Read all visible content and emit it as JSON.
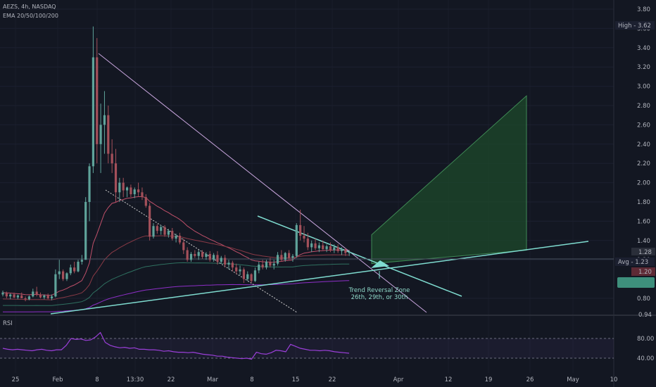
{
  "header": {
    "symbol_line": "AEZS, 4h, NASDAQ",
    "indicator_line": "EMA 20/50/100/200"
  },
  "rsi": {
    "label": "RSI",
    "ticks": [
      "80.00",
      "40.00"
    ],
    "values": [
      60,
      58,
      57,
      58,
      57,
      56,
      55,
      57,
      58,
      56,
      55,
      57,
      57,
      66,
      80,
      78,
      79,
      76,
      77,
      83,
      92,
      72,
      66,
      63,
      61,
      62,
      60,
      61,
      58,
      58,
      57,
      57,
      56,
      54,
      55,
      53,
      52,
      52,
      51,
      52,
      50,
      48,
      47,
      46,
      44,
      44,
      42,
      41,
      40,
      39,
      40,
      38,
      52,
      49,
      48,
      51,
      56,
      55,
      53,
      68,
      64,
      60,
      58,
      56,
      56,
      55,
      56,
      55,
      53,
      52,
      51,
      50
    ]
  },
  "price_labels": {
    "high": "High - 3.62",
    "current": "1.28",
    "avg": "Avg - 1.23",
    "red": "1.20",
    "bottom_partial": "0.94"
  },
  "annotation": {
    "line1": "Trend Reversal Zone",
    "line2": "26th, 29th, or 30th"
  },
  "colors": {
    "background": "#131722",
    "up": "#5fa39a",
    "down": "#a4505a",
    "trendline_teal": "#7fdcd0",
    "trendline_lilac": "#c9a6de",
    "target_box": "#1d4a2b",
    "rsi_line": "#9b3fd9",
    "ema20": "#c0506a",
    "ema50": "#8a3a46",
    "ema100": "#2f7060",
    "ema200": "#8e2fc8"
  },
  "chart_data": {
    "type": "candlestick",
    "title": "AEZS, 4h, NASDAQ",
    "ylim": [
      0.7,
      3.85
    ],
    "y_ticks": [
      3.8,
      3.6,
      3.4,
      3.2,
      3.0,
      2.8,
      2.6,
      2.4,
      2.2,
      2.0,
      1.8,
      1.6,
      1.4,
      1.2,
      0.8
    ],
    "x_ticks": [
      "25",
      "Feb",
      "8",
      "13:30",
      "22",
      "Mar",
      "8",
      "15",
      "22",
      "Apr",
      "12",
      "19",
      "26",
      "May",
      "10"
    ],
    "candles": [
      [
        0.84,
        0.88,
        0.82,
        0.86
      ],
      [
        0.86,
        0.87,
        0.8,
        0.82
      ],
      [
        0.82,
        0.85,
        0.79,
        0.84
      ],
      [
        0.84,
        0.86,
        0.8,
        0.81
      ],
      [
        0.81,
        0.84,
        0.79,
        0.83
      ],
      [
        0.83,
        0.86,
        0.8,
        0.8
      ],
      [
        0.8,
        0.82,
        0.77,
        0.79
      ],
      [
        0.79,
        0.83,
        0.78,
        0.82
      ],
      [
        0.82,
        0.9,
        0.81,
        0.87
      ],
      [
        0.87,
        0.92,
        0.82,
        0.84
      ],
      [
        0.84,
        0.86,
        0.8,
        0.81
      ],
      [
        0.81,
        0.84,
        0.79,
        0.83
      ],
      [
        0.83,
        0.85,
        0.79,
        0.8
      ],
      [
        0.8,
        0.84,
        0.78,
        0.82
      ],
      [
        0.82,
        1.1,
        0.81,
        1.05
      ],
      [
        1.05,
        1.2,
        1.0,
        1.08
      ],
      [
        1.08,
        1.1,
        0.98,
        1.0
      ],
      [
        1.0,
        1.07,
        0.98,
        1.06
      ],
      [
        1.06,
        1.15,
        1.04,
        1.12
      ],
      [
        1.12,
        1.18,
        1.06,
        1.08
      ],
      [
        1.08,
        1.2,
        1.07,
        1.18
      ],
      [
        1.18,
        1.25,
        1.15,
        1.2
      ],
      [
        1.2,
        1.85,
        1.2,
        1.8
      ],
      [
        1.8,
        2.2,
        1.6,
        2.17
      ],
      [
        2.17,
        3.62,
        2.1,
        3.3
      ],
      [
        3.3,
        3.5,
        2.2,
        2.4
      ],
      [
        2.4,
        2.82,
        2.1,
        2.6
      ],
      [
        2.6,
        2.95,
        2.3,
        2.7
      ],
      [
        2.7,
        2.8,
        2.2,
        2.3
      ],
      [
        2.3,
        2.45,
        2.1,
        2.2
      ],
      [
        2.2,
        2.35,
        1.8,
        1.9
      ],
      [
        1.9,
        2.05,
        1.8,
        2.0
      ],
      [
        2.0,
        2.05,
        1.85,
        1.92
      ],
      [
        1.92,
        1.96,
        1.85,
        1.95
      ],
      [
        1.95,
        1.98,
        1.85,
        1.88
      ],
      [
        1.88,
        1.95,
        1.84,
        1.93
      ],
      [
        1.93,
        2.0,
        1.86,
        1.9
      ],
      [
        1.9,
        1.95,
        1.82,
        1.85
      ],
      [
        1.85,
        1.88,
        1.74,
        1.76
      ],
      [
        1.76,
        1.79,
        1.4,
        1.44
      ],
      [
        1.44,
        1.58,
        1.42,
        1.55
      ],
      [
        1.55,
        1.57,
        1.47,
        1.5
      ],
      [
        1.5,
        1.56,
        1.46,
        1.54
      ],
      [
        1.54,
        1.56,
        1.44,
        1.46
      ],
      [
        1.46,
        1.52,
        1.43,
        1.5
      ],
      [
        1.5,
        1.53,
        1.4,
        1.42
      ],
      [
        1.42,
        1.47,
        1.38,
        1.45
      ],
      [
        1.45,
        1.48,
        1.36,
        1.38
      ],
      [
        1.38,
        1.42,
        1.26,
        1.3
      ],
      [
        1.3,
        1.33,
        1.18,
        1.2
      ],
      [
        1.2,
        1.28,
        1.18,
        1.26
      ],
      [
        1.26,
        1.3,
        1.22,
        1.24
      ],
      [
        1.24,
        1.3,
        1.2,
        1.28
      ],
      [
        1.28,
        1.3,
        1.21,
        1.23
      ],
      [
        1.23,
        1.28,
        1.2,
        1.26
      ],
      [
        1.26,
        1.29,
        1.18,
        1.2
      ],
      [
        1.2,
        1.27,
        1.18,
        1.25
      ],
      [
        1.25,
        1.29,
        1.15,
        1.18
      ],
      [
        1.18,
        1.24,
        1.16,
        1.22
      ],
      [
        1.22,
        1.25,
        1.12,
        1.15
      ],
      [
        1.15,
        1.2,
        1.1,
        1.17
      ],
      [
        1.17,
        1.19,
        1.08,
        1.12
      ],
      [
        1.12,
        1.16,
        1.05,
        1.08
      ],
      [
        1.08,
        1.14,
        1.04,
        1.1
      ],
      [
        1.1,
        1.12,
        0.96,
        1.0
      ],
      [
        1.0,
        1.08,
        0.98,
        1.05
      ],
      [
        1.05,
        1.06,
        0.96,
        0.98
      ],
      [
        0.98,
        1.12,
        0.97,
        1.09
      ],
      [
        1.09,
        1.18,
        1.06,
        1.15
      ],
      [
        1.15,
        1.2,
        1.1,
        1.12
      ],
      [
        1.12,
        1.2,
        1.1,
        1.18
      ],
      [
        1.18,
        1.22,
        1.12,
        1.14
      ],
      [
        1.14,
        1.2,
        1.1,
        1.16
      ],
      [
        1.16,
        1.28,
        1.14,
        1.25
      ],
      [
        1.25,
        1.3,
        1.18,
        1.2
      ],
      [
        1.2,
        1.28,
        1.18,
        1.27
      ],
      [
        1.27,
        1.3,
        1.2,
        1.22
      ],
      [
        1.22,
        1.26,
        1.18,
        1.24
      ],
      [
        1.24,
        1.58,
        1.22,
        1.56
      ],
      [
        1.56,
        1.72,
        1.4,
        1.45
      ],
      [
        1.45,
        1.55,
        1.38,
        1.42
      ],
      [
        1.42,
        1.48,
        1.3,
        1.33
      ],
      [
        1.33,
        1.4,
        1.28,
        1.37
      ],
      [
        1.37,
        1.42,
        1.3,
        1.32
      ],
      [
        1.32,
        1.38,
        1.28,
        1.35
      ],
      [
        1.35,
        1.4,
        1.3,
        1.31
      ],
      [
        1.31,
        1.36,
        1.28,
        1.34
      ],
      [
        1.34,
        1.38,
        1.28,
        1.3
      ],
      [
        1.3,
        1.36,
        1.27,
        1.33
      ],
      [
        1.33,
        1.36,
        1.27,
        1.29
      ],
      [
        1.29,
        1.33,
        1.25,
        1.31
      ],
      [
        1.31,
        1.32,
        1.24,
        1.27
      ],
      [
        1.27,
        1.3,
        1.24,
        1.28
      ]
    ]
  }
}
